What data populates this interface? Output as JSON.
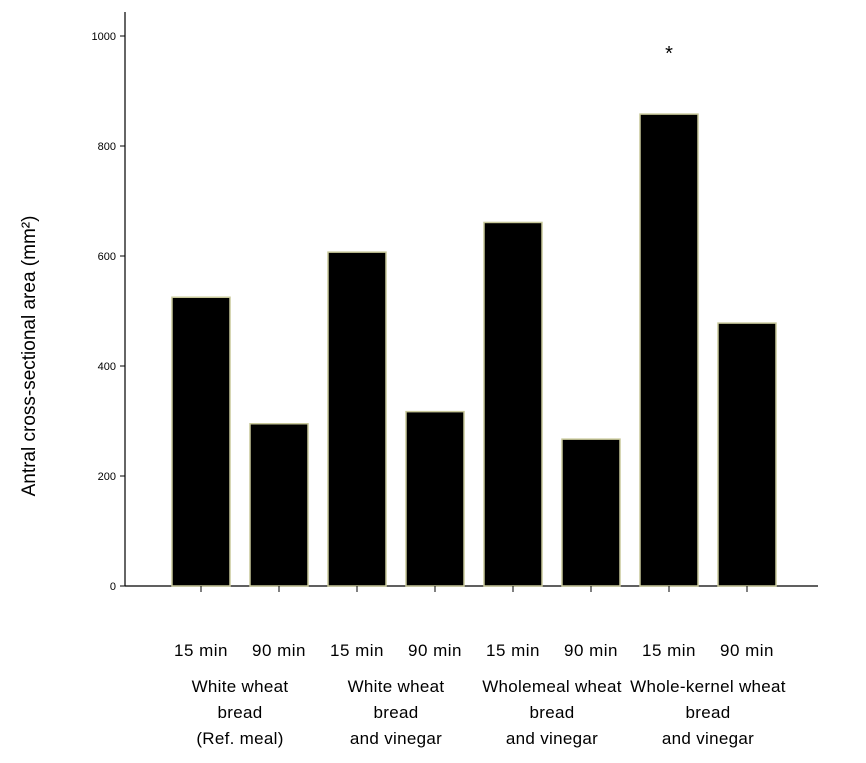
{
  "chart_data": {
    "type": "bar",
    "ylabel": "Antral cross-sectional area (mm²)",
    "xlabel": "",
    "ylim": [
      0,
      1000
    ],
    "yticks": [
      "0",
      "200",
      "400",
      "600",
      "800",
      "1000"
    ],
    "categories": [
      "15 min",
      "90 min",
      "15 min",
      "90 min",
      "15 min",
      "90 min",
      "15 min",
      "90 min"
    ],
    "values": [
      525,
      295,
      607,
      317,
      661,
      267,
      858,
      478
    ],
    "groups": [
      {
        "lines": [
          "White wheat",
          "bread",
          "(Ref. meal)"
        ]
      },
      {
        "lines": [
          "White wheat",
          "bread",
          "and vinegar"
        ]
      },
      {
        "lines": [
          "Wholemeal wheat",
          "bread",
          "and vinegar"
        ]
      },
      {
        "lines": [
          "Whole-kernel wheat",
          "bread",
          "and vinegar"
        ]
      }
    ],
    "annotations": [
      {
        "text": "*",
        "category_index": 6
      }
    ],
    "bar_color": "#000000",
    "bar_edge_color": "#c8c89a",
    "grid": false,
    "legend": "none"
  }
}
